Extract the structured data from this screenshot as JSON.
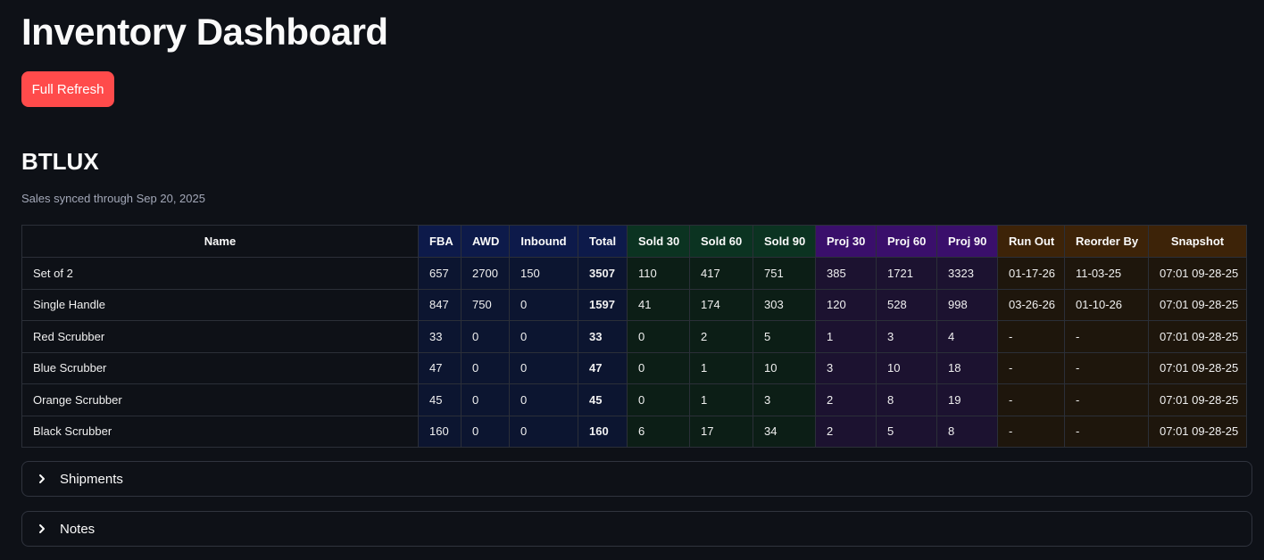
{
  "page": {
    "title": "Inventory Dashboard"
  },
  "toolbar": {
    "refresh_label": "Full Refresh"
  },
  "section": {
    "title": "BTLUX",
    "caption": "Sales synced through Sep 20, 2025"
  },
  "colors": {
    "accent": "#ff4b4b",
    "background": "#0e1117",
    "stock_header": "#0d1a4a",
    "sold_header": "#0b3321",
    "proj_header": "#3a0f6b",
    "runout_header": "#3d2308"
  },
  "table": {
    "headers": [
      "Name",
      "FBA",
      "AWD",
      "Inbound",
      "Total",
      "Sold 30",
      "Sold 60",
      "Sold 90",
      "Proj 30",
      "Proj 60",
      "Proj 90",
      "Run Out",
      "Reorder By",
      "Snapshot"
    ],
    "rows": [
      [
        "Set of 2",
        "657",
        "2700",
        "150",
        "3507",
        "110",
        "417",
        "751",
        "385",
        "1721",
        "3323",
        "01-17-26",
        "11-03-25",
        "07:01 09-28-25"
      ],
      [
        "Single Handle",
        "847",
        "750",
        "0",
        "1597",
        "41",
        "174",
        "303",
        "120",
        "528",
        "998",
        "03-26-26",
        "01-10-26",
        "07:01 09-28-25"
      ],
      [
        "Red Scrubber",
        "33",
        "0",
        "0",
        "33",
        "0",
        "2",
        "5",
        "1",
        "3",
        "4",
        "-",
        "-",
        "07:01 09-28-25"
      ],
      [
        "Blue Scrubber",
        "47",
        "0",
        "0",
        "47",
        "0",
        "1",
        "10",
        "3",
        "10",
        "18",
        "-",
        "-",
        "07:01 09-28-25"
      ],
      [
        "Orange Scrubber",
        "45",
        "0",
        "0",
        "45",
        "0",
        "1",
        "3",
        "2",
        "8",
        "19",
        "-",
        "-",
        "07:01 09-28-25"
      ],
      [
        "Black Scrubber",
        "160",
        "0",
        "0",
        "160",
        "6",
        "17",
        "34",
        "2",
        "5",
        "8",
        "-",
        "-",
        "07:01 09-28-25"
      ]
    ]
  },
  "expanders": [
    {
      "label": "Shipments",
      "icon": "chevron-right-icon"
    },
    {
      "label": "Notes",
      "icon": "chevron-right-icon"
    }
  ]
}
